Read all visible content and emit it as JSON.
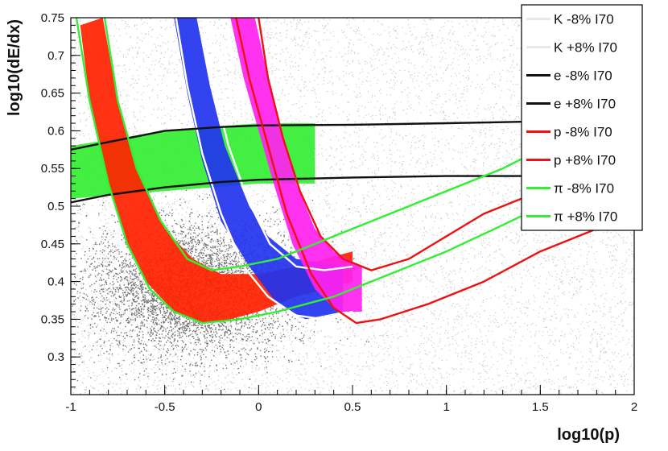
{
  "chart_data": {
    "type": "scatter",
    "title": "",
    "xlabel": "log10(p)",
    "ylabel": "log10(dE/dx)",
    "xlim": [
      -1,
      2
    ],
    "ylim": [
      0.25,
      0.75
    ],
    "x_ticks": [
      -1,
      -0.5,
      0,
      0.5,
      1,
      1.5,
      2
    ],
    "x_tick_labels": [
      "-1",
      "-0.5",
      "0",
      "0.5",
      "1",
      "1.5",
      "2"
    ],
    "y_ticks": [
      0.3,
      0.35,
      0.4,
      0.45,
      0.5,
      0.55,
      0.6,
      0.65,
      0.7,
      0.75
    ],
    "y_tick_labels": [
      "0.3",
      "0.35",
      "0.4",
      "0.45",
      "0.5",
      "0.55",
      "0.6",
      "0.65",
      "0.7",
      "0.75"
    ],
    "grid": false,
    "legend_position": "top-right",
    "bands": [
      {
        "particle": "e",
        "color": "#33ee33",
        "lower": [
          [
            -1,
            0.51
          ],
          [
            -0.5,
            0.52
          ],
          [
            0,
            0.53
          ],
          [
            0.3,
            0.53
          ]
        ],
        "upper": [
          [
            -1,
            0.58
          ],
          [
            -0.5,
            0.6
          ],
          [
            0,
            0.61
          ],
          [
            0.3,
            0.61
          ]
        ]
      },
      {
        "particle": "pi",
        "color": "#ff2200",
        "lower": [
          [
            -0.95,
            0.74
          ],
          [
            -0.9,
            0.64
          ],
          [
            -0.8,
            0.53
          ],
          [
            -0.7,
            0.45
          ],
          [
            -0.6,
            0.4
          ],
          [
            -0.45,
            0.36
          ],
          [
            -0.3,
            0.345
          ],
          [
            -0.15,
            0.35
          ],
          [
            0,
            0.36
          ],
          [
            0.2,
            0.38
          ],
          [
            0.5,
            0.4
          ]
        ],
        "upper": [
          [
            -0.83,
            0.75
          ],
          [
            -0.75,
            0.64
          ],
          [
            -0.65,
            0.55
          ],
          [
            -0.5,
            0.47
          ],
          [
            -0.35,
            0.43
          ],
          [
            -0.2,
            0.41
          ],
          [
            0,
            0.41
          ],
          [
            0.2,
            0.42
          ],
          [
            0.5,
            0.44
          ]
        ]
      },
      {
        "particle": "K",
        "color": "#2233ee",
        "lower": [
          [
            -0.45,
            0.75
          ],
          [
            -0.38,
            0.65
          ],
          [
            -0.3,
            0.56
          ],
          [
            -0.2,
            0.48
          ],
          [
            -0.05,
            0.42
          ],
          [
            0.1,
            0.37
          ],
          [
            0.25,
            0.35
          ],
          [
            0.45,
            0.36
          ]
        ],
        "upper": [
          [
            -0.33,
            0.75
          ],
          [
            -0.26,
            0.66
          ],
          [
            -0.18,
            0.58
          ],
          [
            -0.05,
            0.5
          ],
          [
            0.05,
            0.46
          ],
          [
            0.2,
            0.43
          ],
          [
            0.45,
            0.42
          ]
        ]
      },
      {
        "particle": "p",
        "color": "#ff22ee",
        "lower": [
          [
            -0.15,
            0.75
          ],
          [
            -0.08,
            0.67
          ],
          [
            0,
            0.6
          ],
          [
            0.08,
            0.53
          ],
          [
            0.18,
            0.45
          ],
          [
            0.3,
            0.39
          ],
          [
            0.42,
            0.36
          ],
          [
            0.55,
            0.36
          ]
        ],
        "upper": [
          [
            -0.02,
            0.75
          ],
          [
            0.05,
            0.67
          ],
          [
            0.12,
            0.6
          ],
          [
            0.2,
            0.53
          ],
          [
            0.3,
            0.47
          ],
          [
            0.4,
            0.44
          ],
          [
            0.55,
            0.42
          ]
        ]
      }
    ],
    "curves": [
      {
        "name": "K -8%  I70",
        "color": "#ffffff",
        "points": [
          [
            -0.44,
            0.75
          ],
          [
            -0.38,
            0.66
          ],
          [
            -0.3,
            0.57
          ],
          [
            -0.2,
            0.49
          ],
          [
            -0.08,
            0.42
          ],
          [
            0.05,
            0.38
          ],
          [
            0.2,
            0.355
          ],
          [
            0.35,
            0.35
          ],
          [
            0.5,
            0.36
          ]
        ]
      },
      {
        "name": "K +8%  I70",
        "color": "#ffffff",
        "points": [
          [
            -0.3,
            0.75
          ],
          [
            -0.25,
            0.67
          ],
          [
            -0.16,
            0.58
          ],
          [
            -0.06,
            0.51
          ],
          [
            0.06,
            0.45
          ],
          [
            0.2,
            0.42
          ],
          [
            0.35,
            0.415
          ],
          [
            0.5,
            0.42
          ]
        ]
      },
      {
        "name": "e -8%  I70",
        "color": "#111111",
        "points": [
          [
            -1,
            0.575
          ],
          [
            -0.8,
            0.585
          ],
          [
            -0.5,
            0.6
          ],
          [
            -0.2,
            0.605
          ],
          [
            0,
            0.607
          ],
          [
            0.5,
            0.608
          ],
          [
            1,
            0.61
          ],
          [
            1.4,
            0.612
          ]
        ]
      },
      {
        "name": "e +8%  I70",
        "color": "#111111",
        "points": [
          [
            -1,
            0.505
          ],
          [
            -0.8,
            0.515
          ],
          [
            -0.5,
            0.525
          ],
          [
            -0.2,
            0.532
          ],
          [
            0,
            0.535
          ],
          [
            0.5,
            0.538
          ],
          [
            1,
            0.54
          ],
          [
            1.4,
            0.54
          ]
        ]
      },
      {
        "name": "p -8%  I70",
        "color": "#ee1111",
        "points": [
          [
            -0.12,
            0.75
          ],
          [
            -0.05,
            0.67
          ],
          [
            0.05,
            0.58
          ],
          [
            0.15,
            0.49
          ],
          [
            0.28,
            0.41
          ],
          [
            0.4,
            0.365
          ],
          [
            0.52,
            0.345
          ],
          [
            0.65,
            0.35
          ],
          [
            0.9,
            0.37
          ],
          [
            1.2,
            0.4
          ],
          [
            1.5,
            0.44
          ],
          [
            1.8,
            0.47
          ]
        ]
      },
      {
        "name": "p +8%  I70",
        "color": "#ee1111",
        "points": [
          [
            0,
            0.75
          ],
          [
            0.05,
            0.67
          ],
          [
            0.13,
            0.59
          ],
          [
            0.22,
            0.52
          ],
          [
            0.33,
            0.46
          ],
          [
            0.45,
            0.43
          ],
          [
            0.6,
            0.415
          ],
          [
            0.8,
            0.43
          ],
          [
            1.0,
            0.46
          ],
          [
            1.2,
            0.49
          ],
          [
            1.4,
            0.51
          ]
        ]
      },
      {
        "name": "π -8%  I70",
        "color": "#33ee33",
        "points": [
          [
            -0.97,
            0.75
          ],
          [
            -0.9,
            0.64
          ],
          [
            -0.8,
            0.53
          ],
          [
            -0.7,
            0.45
          ],
          [
            -0.58,
            0.39
          ],
          [
            -0.45,
            0.36
          ],
          [
            -0.3,
            0.345
          ],
          [
            -0.1,
            0.35
          ],
          [
            0.1,
            0.36
          ],
          [
            0.4,
            0.38
          ],
          [
            0.7,
            0.41
          ],
          [
            1.0,
            0.44
          ],
          [
            1.3,
            0.475
          ],
          [
            1.55,
            0.505
          ]
        ]
      },
      {
        "name": "π +8%  I70",
        "color": "#33ee33",
        "points": [
          [
            -0.82,
            0.75
          ],
          [
            -0.75,
            0.64
          ],
          [
            -0.65,
            0.55
          ],
          [
            -0.52,
            0.48
          ],
          [
            -0.38,
            0.43
          ],
          [
            -0.25,
            0.415
          ],
          [
            -0.1,
            0.42
          ],
          [
            0.1,
            0.43
          ],
          [
            0.4,
            0.46
          ],
          [
            0.7,
            0.49
          ],
          [
            1.0,
            0.52
          ],
          [
            1.3,
            0.55
          ],
          [
            1.5,
            0.575
          ]
        ]
      }
    ],
    "legend": [
      {
        "label": "K -8%  I70",
        "color": "#ffffff"
      },
      {
        "label": "K +8%  I70",
        "color": "#ffffff"
      },
      {
        "label": "e -8%  I70",
        "color": "#111111"
      },
      {
        "label": "e +8%  I70",
        "color": "#111111"
      },
      {
        "label": "p -8%  I70",
        "color": "#ee1111"
      },
      {
        "label": "p +8%  I70",
        "color": "#ee1111"
      },
      {
        "label": "π -8%  I70",
        "color": "#33ee33"
      },
      {
        "label": "π +8%  I70",
        "color": "#33ee33"
      }
    ]
  }
}
